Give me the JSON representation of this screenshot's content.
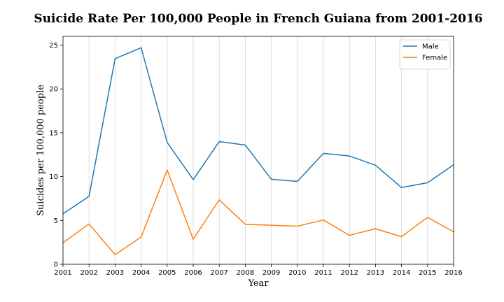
{
  "chart_data": {
    "type": "line",
    "title": "Suicide Rate Per 100,000 People in French Guiana from 2001-2016",
    "xlabel": "Year",
    "ylabel": "Suicides per 100,000 people",
    "x": [
      2001,
      2002,
      2003,
      2004,
      2005,
      2006,
      2007,
      2008,
      2009,
      2010,
      2011,
      2012,
      2013,
      2014,
      2015,
      2016
    ],
    "xlim": [
      2001,
      2016
    ],
    "ylim": [
      0,
      26
    ],
    "yticks": [
      0,
      5,
      10,
      15,
      20,
      25
    ],
    "grid": "vertical",
    "legend_position": "top-right",
    "series": [
      {
        "name": "Male",
        "color": "#1f77b4",
        "values": [
          5.75,
          7.75,
          23.45,
          24.7,
          13.9,
          9.65,
          14.0,
          13.6,
          9.7,
          9.45,
          12.65,
          12.35,
          11.3,
          8.75,
          9.3,
          11.35
        ]
      },
      {
        "name": "Female",
        "color": "#ff7f0e",
        "values": [
          2.45,
          4.6,
          1.1,
          3.1,
          10.75,
          2.85,
          7.35,
          4.55,
          4.45,
          4.35,
          5.05,
          3.3,
          4.05,
          3.15,
          5.35,
          3.7
        ]
      }
    ]
  }
}
